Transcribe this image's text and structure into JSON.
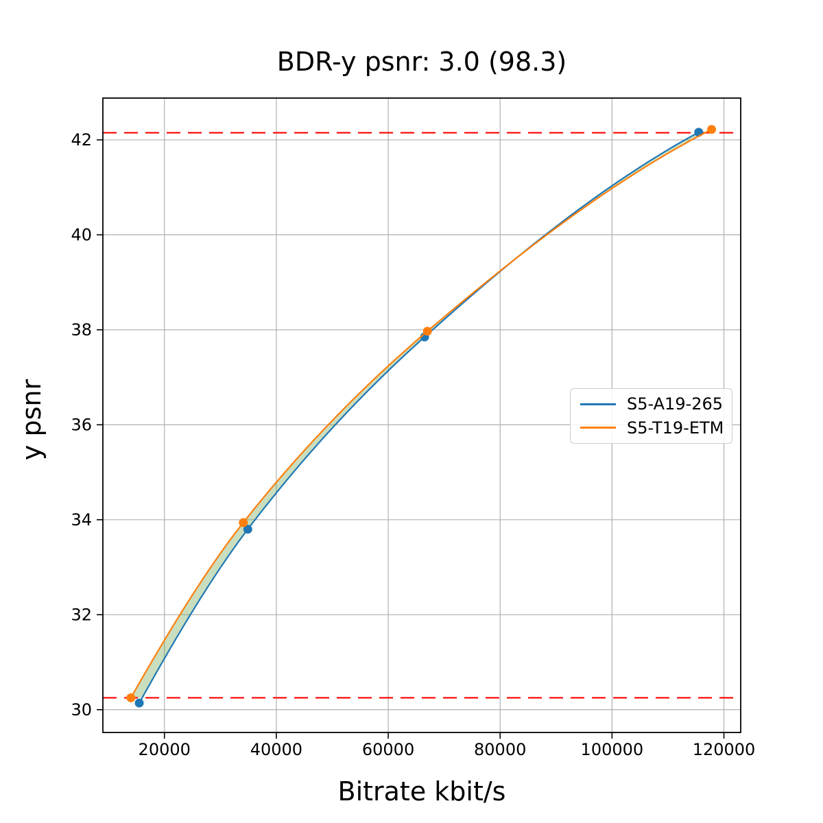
{
  "figure": {
    "title": "BDR-y psnr: 3.0 (98.3)",
    "xlabel": "Bitrate kbit/s",
    "ylabel": "y psnr"
  },
  "chart_data": {
    "type": "line",
    "title": "BDR-y psnr: 3.0 (98.3)",
    "xlabel": "Bitrate kbit/s",
    "ylabel": "y psnr",
    "xlim": [
      9000,
      123000
    ],
    "ylim": [
      29.52,
      42.88
    ],
    "x_ticks": [
      20000,
      40000,
      60000,
      80000,
      100000,
      120000
    ],
    "x_tick_labels": [
      "20000",
      "40000",
      "60000",
      "80000",
      "100000",
      "120000"
    ],
    "y_ticks": [
      30,
      32,
      34,
      36,
      38,
      40,
      42
    ],
    "y_tick_labels": [
      "30",
      "32",
      "34",
      "36",
      "38",
      "40",
      "42"
    ],
    "grid": true,
    "grid_color": "#b0b0b0",
    "legend_position": "center-right",
    "series": [
      {
        "name": "S5-A19-265",
        "color": "#1f77b4",
        "marker": "circle",
        "points": [
          [
            15500,
            30.14
          ],
          [
            34900,
            33.8
          ],
          [
            66500,
            37.85
          ],
          [
            115500,
            42.16
          ]
        ]
      },
      {
        "name": "S5-T19-ETM",
        "color": "#ff7f0e",
        "marker": "circle",
        "points": [
          [
            14000,
            30.25
          ],
          [
            34100,
            33.94
          ],
          [
            67000,
            37.97
          ],
          [
            117800,
            42.22
          ]
        ]
      }
    ],
    "reference_lines": [
      {
        "y": 42.15,
        "color": "#ff0000",
        "style": "dashed"
      },
      {
        "y": 30.25,
        "color": "#ff0000",
        "style": "dashed"
      }
    ],
    "fill_between": {
      "series": [
        0,
        1
      ],
      "color": "#64a046",
      "alpha": 0.35,
      "y_range": [
        30.25,
        42.16
      ]
    }
  }
}
